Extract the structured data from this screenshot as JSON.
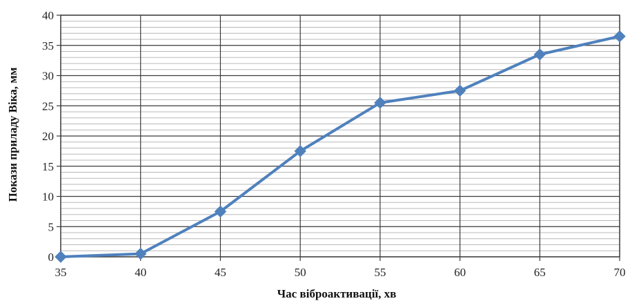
{
  "chart_data": {
    "type": "line",
    "xlabel": "Час віброактивації, хв",
    "ylabel": "Покази приладу Віка, мм",
    "x": [
      35,
      40,
      45,
      50,
      55,
      60,
      65,
      70
    ],
    "series": [
      {
        "values": [
          0,
          0.5,
          7.5,
          17.5,
          25.5,
          27.5,
          33.5,
          36.5
        ]
      }
    ],
    "x_ticks": [
      "35",
      "40",
      "45",
      "50",
      "55",
      "60",
      "65",
      "70"
    ],
    "y_ticks": [
      "0",
      "5",
      "10",
      "15",
      "20",
      "25",
      "30",
      "35",
      "40"
    ],
    "xlim": [
      35,
      70
    ],
    "ylim": [
      0,
      40
    ],
    "major_grid": true,
    "minor_grid_step": 1,
    "series_color": "#4f81bd",
    "marker": "diamond"
  }
}
